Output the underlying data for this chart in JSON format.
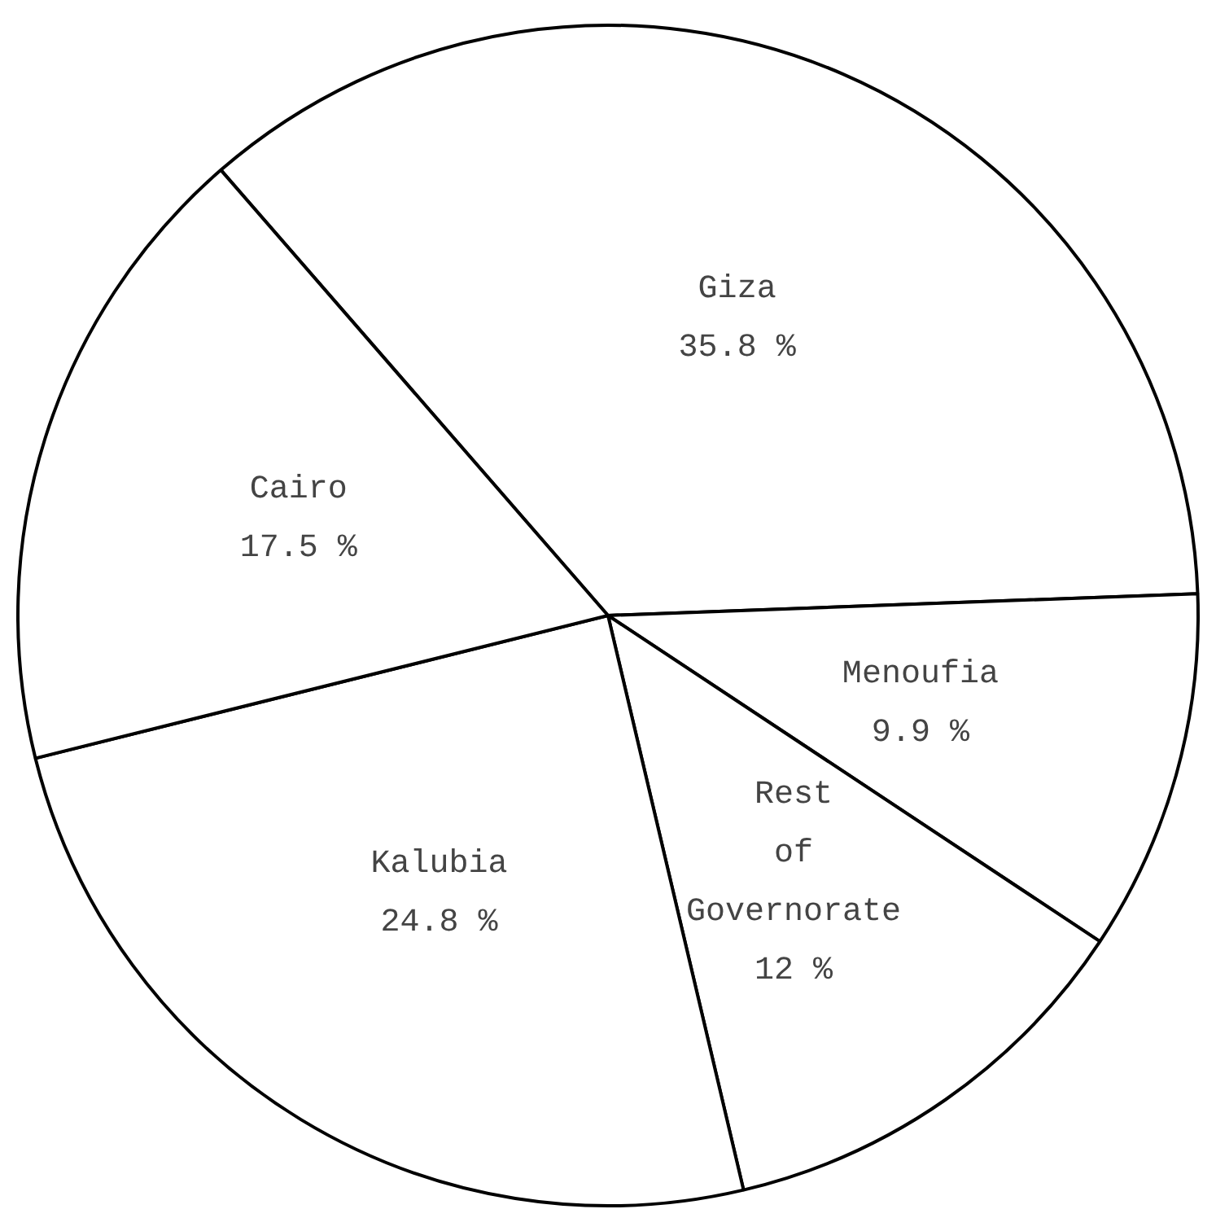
{
  "chart_data": {
    "type": "pie",
    "categories": [
      "Giza",
      "Menoufia",
      "Rest of Governorate",
      "Kalubia",
      "Cairo"
    ],
    "values": [
      35.8,
      9.9,
      12,
      24.8,
      17.5
    ],
    "value_labels": [
      "35.8 %",
      "9.9 %",
      "12 %",
      "24.8 %",
      "17.5 %"
    ],
    "colors": [
      "#ffffff",
      "#ffffff",
      "#ffffff",
      "#ffffff",
      "#ffffff"
    ],
    "legend": false
  }
}
